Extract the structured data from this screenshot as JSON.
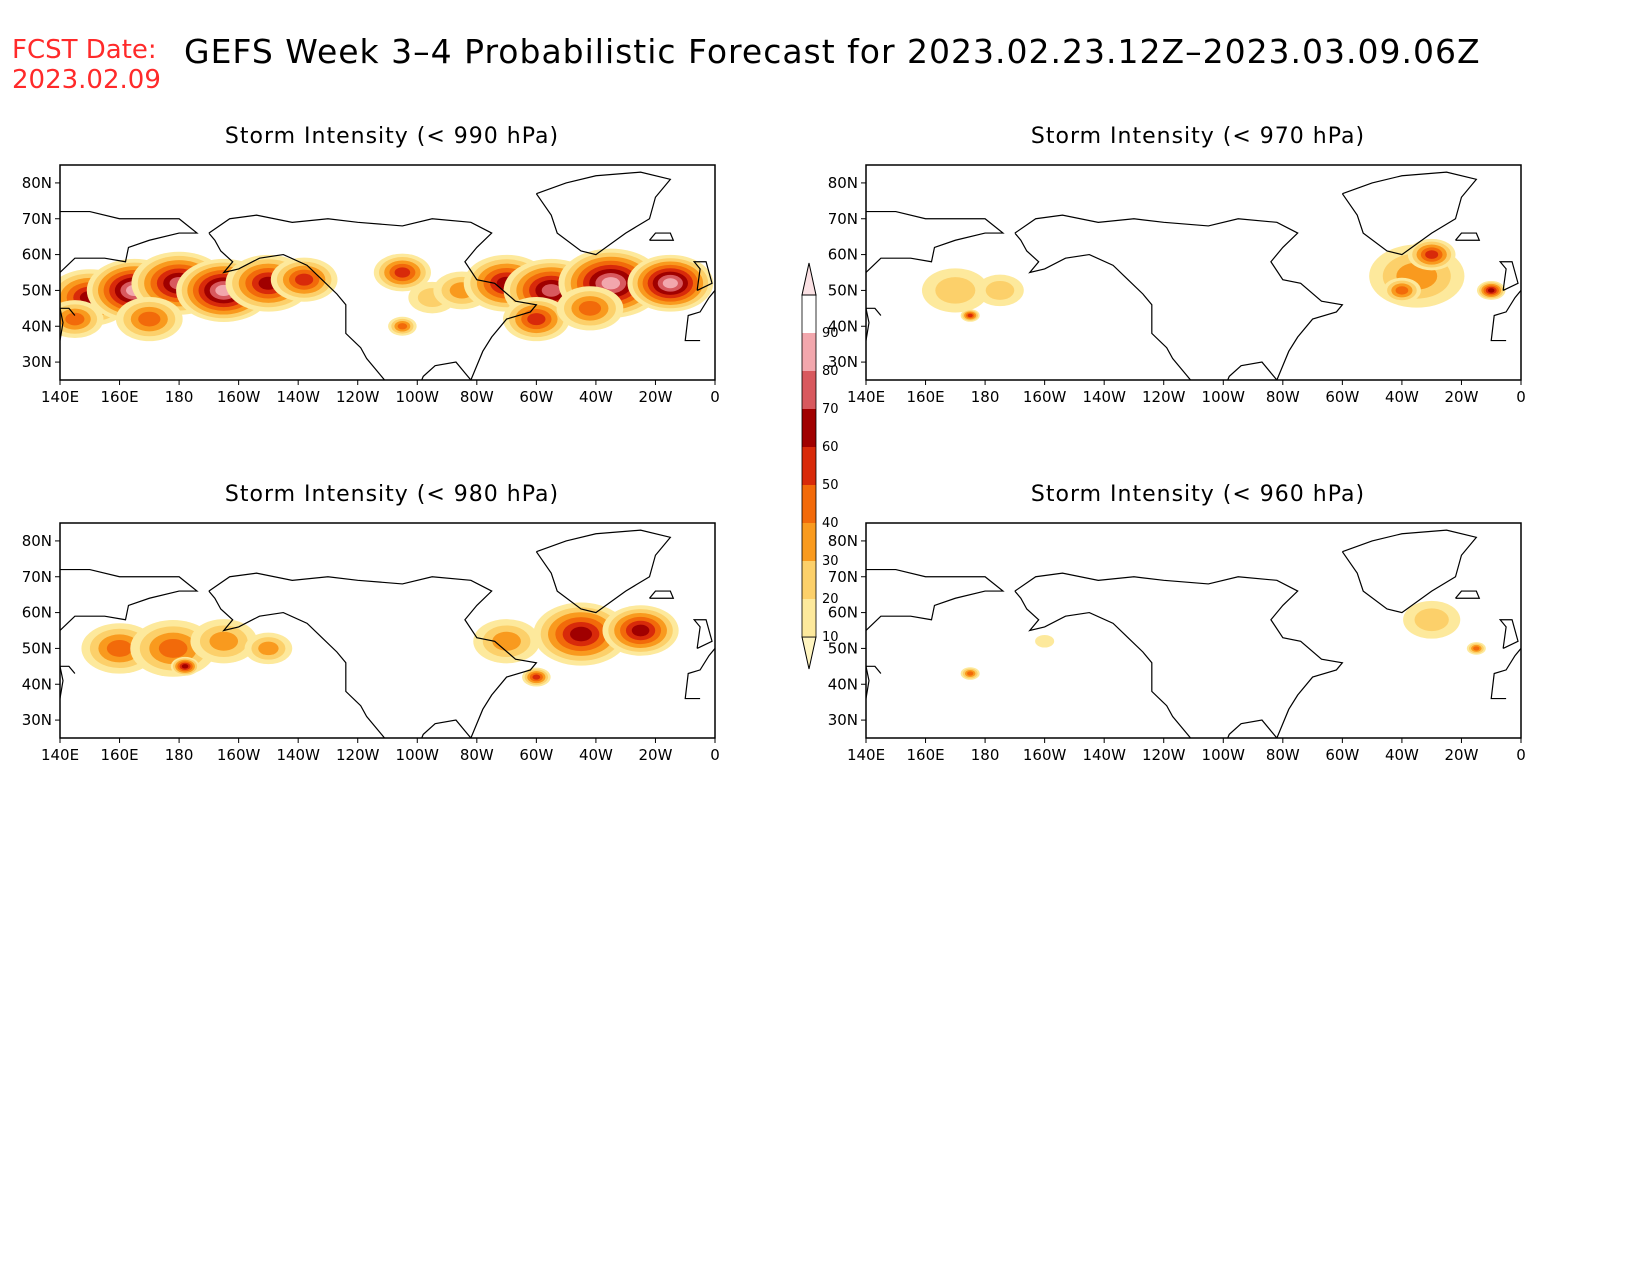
{
  "header": {
    "fcst_label": "FCST Date:",
    "fcst_date": "2023.02.09",
    "title": "GEFS Week 3–4 Probabilistic Forecast for 2023.02.23.12Z–2023.03.09.06Z"
  },
  "panels": [
    {
      "id": "p990",
      "title": "Storm Intensity (< 990 hPa)"
    },
    {
      "id": "p970",
      "title": "Storm Intensity (< 970 hPa)"
    },
    {
      "id": "p980",
      "title": "Storm Intensity (< 980 hPa)"
    },
    {
      "id": "p960",
      "title": "Storm Intensity (< 960 hPa)"
    }
  ],
  "axes": {
    "lat_labels": [
      "80N",
      "70N",
      "60N",
      "50N",
      "40N",
      "30N"
    ],
    "lon_labels": [
      "140E",
      "160E",
      "180",
      "160W",
      "140W",
      "120W",
      "100W",
      "80W",
      "60W",
      "40W",
      "20W",
      "0"
    ],
    "lat_values": [
      80,
      70,
      60,
      50,
      40,
      30
    ],
    "lon_values": [
      140,
      160,
      180,
      200,
      220,
      240,
      260,
      280,
      300,
      320,
      340,
      360
    ],
    "lon_range": [
      140,
      360
    ],
    "lat_range": [
      25,
      85
    ]
  },
  "colorbar": {
    "levels": [
      "10",
      "20",
      "30",
      "40",
      "50",
      "60",
      "70",
      "80",
      "90"
    ],
    "colors": [
      "#fff5c0",
      "#fde99c",
      "#fcd06a",
      "#f99a1e",
      "#f26a0a",
      "#d82a0a",
      "#a00000",
      "#d8595e",
      "#f2a7ad",
      "#fbe1e4"
    ]
  },
  "fields": {
    "p990": [
      {
        "lon": 150,
        "lat": 48,
        "r": 9,
        "v": 60
      },
      {
        "lon": 165,
        "lat": 50,
        "r": 10,
        "v": 80
      },
      {
        "lon": 180,
        "lat": 52,
        "r": 10,
        "v": 70
      },
      {
        "lon": 195,
        "lat": 50,
        "r": 10,
        "v": 80
      },
      {
        "lon": 210,
        "lat": 52,
        "r": 9,
        "v": 60
      },
      {
        "lon": 222,
        "lat": 53,
        "r": 7,
        "v": 55
      },
      {
        "lon": 145,
        "lat": 42,
        "r": 6,
        "v": 45
      },
      {
        "lon": 170,
        "lat": 42,
        "r": 7,
        "v": 45
      },
      {
        "lon": 255,
        "lat": 55,
        "r": 6,
        "v": 55
      },
      {
        "lon": 265,
        "lat": 48,
        "r": 5,
        "v": 25
      },
      {
        "lon": 275,
        "lat": 50,
        "r": 6,
        "v": 30
      },
      {
        "lon": 290,
        "lat": 52,
        "r": 9,
        "v": 60
      },
      {
        "lon": 305,
        "lat": 50,
        "r": 10,
        "v": 75
      },
      {
        "lon": 325,
        "lat": 52,
        "r": 11,
        "v": 85
      },
      {
        "lon": 345,
        "lat": 52,
        "r": 9,
        "v": 85
      },
      {
        "lon": 300,
        "lat": 42,
        "r": 7,
        "v": 55
      },
      {
        "lon": 318,
        "lat": 45,
        "r": 7,
        "v": 45
      },
      {
        "lon": 255,
        "lat": 40,
        "r": 3,
        "v": 40
      }
    ],
    "p970": [
      {
        "lon": 170,
        "lat": 50,
        "r": 7,
        "v": 20
      },
      {
        "lon": 185,
        "lat": 50,
        "r": 5,
        "v": 20
      },
      {
        "lon": 175,
        "lat": 43,
        "r": 2,
        "v": 55
      },
      {
        "lon": 325,
        "lat": 54,
        "r": 10,
        "v": 35
      },
      {
        "lon": 330,
        "lat": 60,
        "r": 5,
        "v": 50
      },
      {
        "lon": 320,
        "lat": 50,
        "r": 4,
        "v": 45
      },
      {
        "lon": 350,
        "lat": 50,
        "r": 3,
        "v": 60
      }
    ],
    "p980": [
      {
        "lon": 160,
        "lat": 50,
        "r": 8,
        "v": 45
      },
      {
        "lon": 178,
        "lat": 50,
        "r": 9,
        "v": 40
      },
      {
        "lon": 195,
        "lat": 52,
        "r": 7,
        "v": 30
      },
      {
        "lon": 210,
        "lat": 50,
        "r": 5,
        "v": 30
      },
      {
        "lon": 182,
        "lat": 45,
        "r": 3,
        "v": 65
      },
      {
        "lon": 290,
        "lat": 52,
        "r": 7,
        "v": 35
      },
      {
        "lon": 315,
        "lat": 54,
        "r": 10,
        "v": 60
      },
      {
        "lon": 335,
        "lat": 55,
        "r": 8,
        "v": 65
      },
      {
        "lon": 300,
        "lat": 42,
        "r": 3,
        "v": 50
      }
    ],
    "p960": [
      {
        "lon": 175,
        "lat": 43,
        "r": 2,
        "v": 40
      },
      {
        "lon": 330,
        "lat": 58,
        "r": 6,
        "v": 20
      },
      {
        "lon": 345,
        "lat": 50,
        "r": 2,
        "v": 40
      },
      {
        "lon": 200,
        "lat": 52,
        "r": 2,
        "v": 15
      }
    ]
  },
  "coastlines": {
    "north_america": [
      [
        190,
        66
      ],
      [
        197,
        70
      ],
      [
        206,
        71
      ],
      [
        218,
        69
      ],
      [
        230,
        70
      ],
      [
        240,
        69
      ],
      [
        255,
        68
      ],
      [
        265,
        70
      ],
      [
        278,
        69
      ],
      [
        285,
        66
      ],
      [
        280,
        62
      ],
      [
        276,
        58
      ],
      [
        280,
        53
      ],
      [
        286,
        52
      ],
      [
        293,
        47
      ],
      [
        300,
        46
      ],
      [
        298,
        44
      ],
      [
        290,
        42
      ],
      [
        285,
        37
      ],
      [
        282,
        33
      ],
      [
        279,
        27
      ],
      [
        278,
        25
      ],
      [
        276,
        27
      ],
      [
        273,
        30
      ],
      [
        266,
        29
      ],
      [
        262,
        26
      ],
      [
        260,
        22
      ],
      [
        254,
        20
      ],
      [
        248,
        26
      ],
      [
        243,
        31
      ],
      [
        241,
        34
      ],
      [
        236,
        38
      ],
      [
        236,
        42
      ],
      [
        236,
        46
      ],
      [
        233,
        49
      ],
      [
        228,
        53
      ],
      [
        223,
        57
      ],
      [
        215,
        60
      ],
      [
        207,
        59
      ],
      [
        200,
        56
      ],
      [
        195,
        55
      ],
      [
        198,
        58
      ],
      [
        194,
        61
      ],
      [
        192,
        64
      ],
      [
        190,
        66
      ]
    ],
    "greenland": [
      [
        300,
        77
      ],
      [
        310,
        80
      ],
      [
        320,
        82
      ],
      [
        335,
        83
      ],
      [
        345,
        81
      ],
      [
        340,
        76
      ],
      [
        338,
        70
      ],
      [
        330,
        66
      ],
      [
        320,
        60
      ],
      [
        315,
        61
      ],
      [
        307,
        66
      ],
      [
        305,
        71
      ],
      [
        300,
        77
      ]
    ],
    "asia": [
      [
        140,
        55
      ],
      [
        145,
        59
      ],
      [
        155,
        59
      ],
      [
        162,
        58
      ],
      [
        163,
        62
      ],
      [
        170,
        64
      ],
      [
        180,
        66
      ],
      [
        186,
        66
      ],
      [
        180,
        70
      ],
      [
        170,
        70
      ],
      [
        160,
        70
      ],
      [
        150,
        72
      ],
      [
        140,
        72
      ]
    ],
    "europe": [
      [
        355,
        36
      ],
      [
        350,
        36
      ],
      [
        351,
        43
      ],
      [
        355,
        44
      ],
      [
        358,
        48
      ],
      [
        360,
        50
      ]
    ],
    "uk": [
      [
        354,
        50
      ],
      [
        355,
        56
      ],
      [
        353,
        58
      ],
      [
        357,
        58
      ],
      [
        359,
        52
      ],
      [
        354,
        50
      ]
    ],
    "iceland": [
      [
        338,
        64
      ],
      [
        340,
        66
      ],
      [
        345,
        66
      ],
      [
        346,
        64
      ],
      [
        338,
        64
      ]
    ],
    "japan": [
      [
        140,
        36
      ],
      [
        141,
        41
      ],
      [
        140,
        45
      ],
      [
        143,
        45
      ],
      [
        145,
        43
      ]
    ]
  }
}
